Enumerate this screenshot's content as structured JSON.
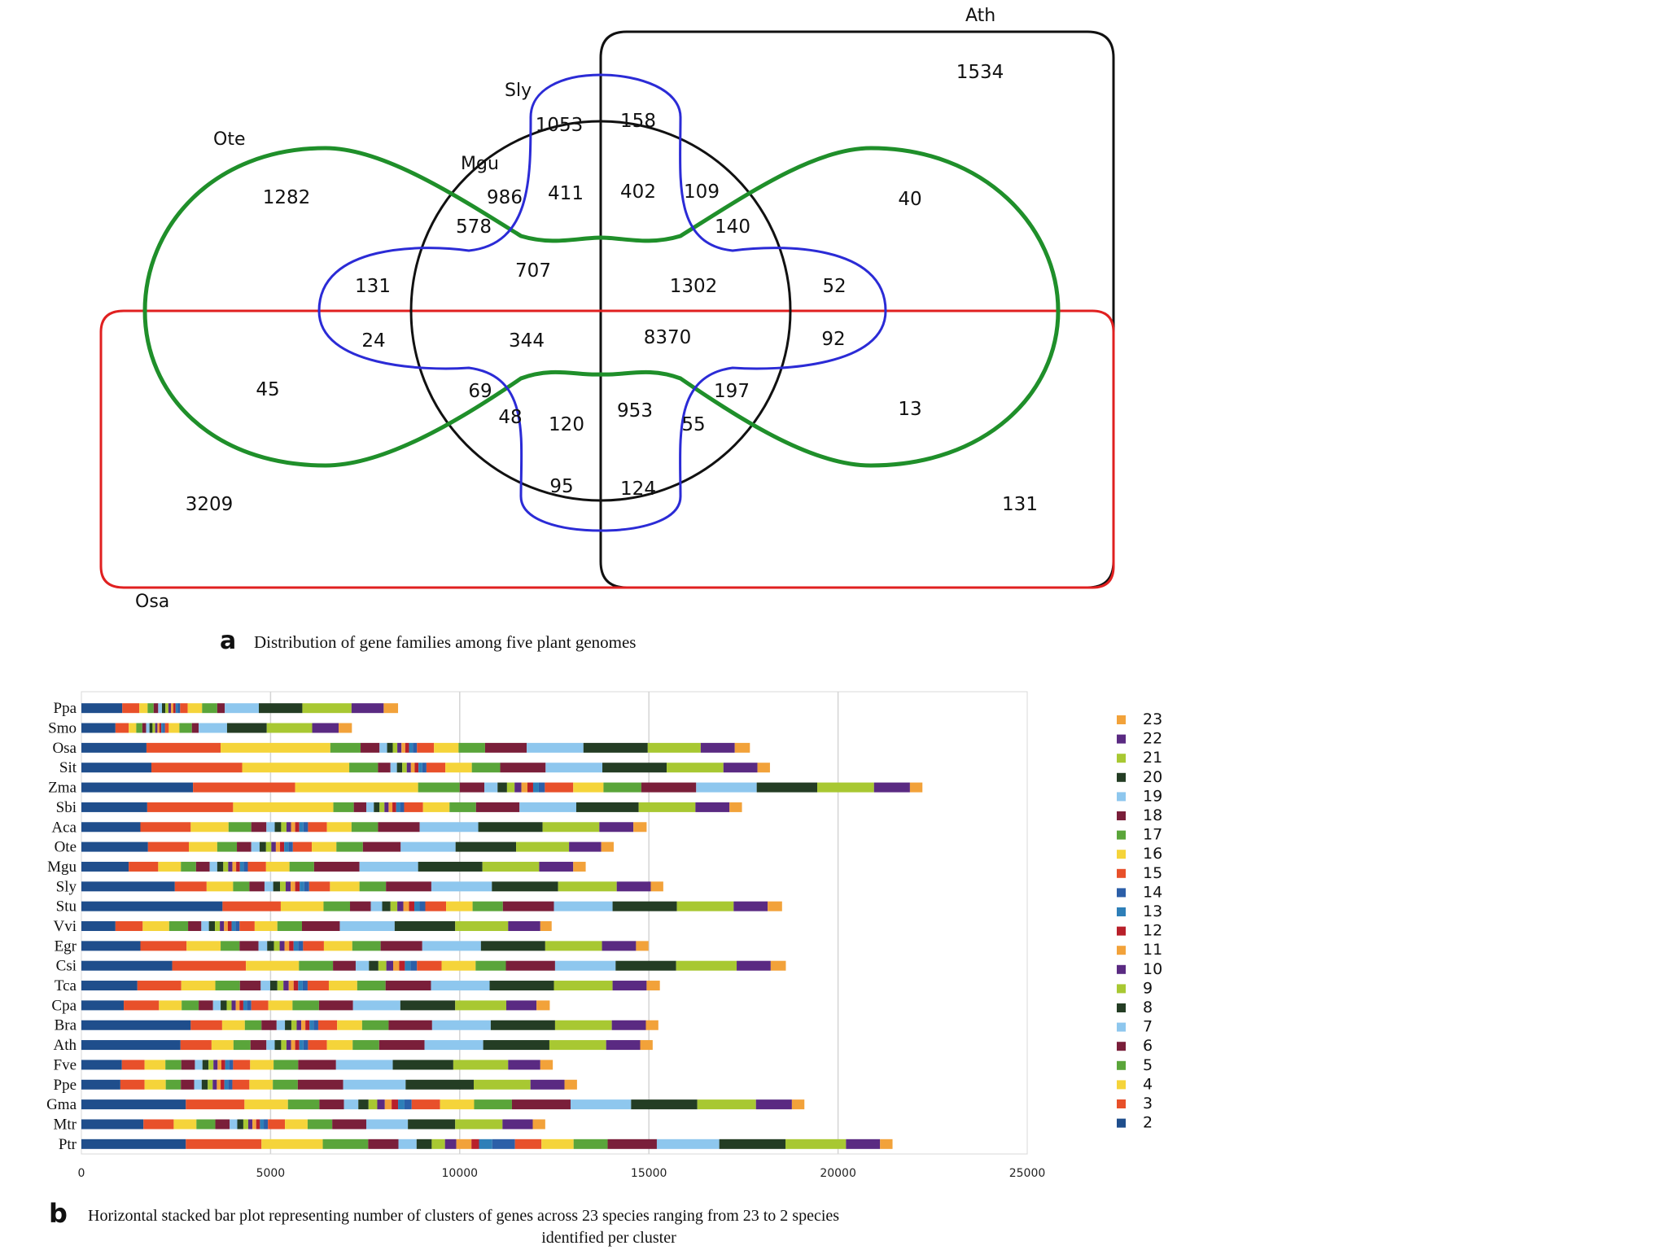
{
  "venn": {
    "panel_letter": "a",
    "caption": "Distribution of gene families among five plant genomes",
    "set_labels": {
      "ath": "Ath",
      "sly": "Sly",
      "ote": "Ote",
      "mgu": "Mgu",
      "osa": "Osa"
    },
    "colors": {
      "ath": "#111111",
      "sly": "#2b2bd6",
      "ote": "#1f8f2a",
      "mgu": "#111111",
      "osa": "#e02020"
    },
    "counts": {
      "ath_only": "1534",
      "sly_left": "1053",
      "sly_right": "158",
      "ote_left": "1282",
      "mgu_ote_sly": "986",
      "mgu_ote_top": "411",
      "mgu_ath_top": "402",
      "mgu_ath_sly": "109",
      "mgu_sly_left": "578",
      "ath_sly_ote_right": "140",
      "ote_right_top": "40",
      "mgu_left_upper": "707",
      "mgu_right_upper": "1302",
      "sly_ote_left_upper": "131",
      "sly_right_upper": "52",
      "sly_ote_left_lower": "24",
      "mgu_left_lower": "344",
      "core": "8370",
      "sly_right_lower": "92",
      "ote_osa_left": "45",
      "mgu_osa_sly_left": "69",
      "mgu_osa_sly_right": "197",
      "ote_right_lower": "13",
      "mgu_sly_ote_left_low": "48",
      "mgu_ote_bottom_left": "120",
      "mgu_ote_bottom_right": "953",
      "mgu_sly_ote_right_low": "55",
      "sly_bottom_left": "95",
      "sly_bottom_right": "124",
      "osa_only": "3209",
      "osa_ath": "131"
    }
  },
  "chart_data": {
    "type": "bar",
    "orientation": "horizontal",
    "stacked": true,
    "panel_letter": "b",
    "caption_line1": "Horizontal stacked bar plot representing number of clusters of genes across 23 species ranging from 23 to 2 species",
    "caption_line2": "identified per cluster",
    "categories": [
      "Ppa",
      "Smo",
      "Osa",
      "Sit",
      "Zma",
      "Sbi",
      "Aca",
      "Ote",
      "Mgu",
      "Sly",
      "Stu",
      "Vvi",
      "Egr",
      "Csi",
      "Tca",
      "Cpa",
      "Bra",
      "Ath",
      "Fve",
      "Ppe",
      "Gma",
      "Mtr",
      "Ptr"
    ],
    "xlim": [
      0,
      25000
    ],
    "xticks": [
      "0",
      "5000",
      "10000",
      "15000",
      "20000",
      "25000"
    ],
    "grid": true,
    "legend_position": "right",
    "series": [
      {
        "name": "2",
        "color": "#1f4e8c",
        "values": [
          1080,
          900,
          1720,
          1850,
          2950,
          1740,
          1560,
          1760,
          1250,
          2470,
          3730,
          900,
          1560,
          2400,
          1480,
          1120,
          2890,
          2620,
          1070,
          1030,
          2760,
          1640,
          2760
        ]
      },
      {
        "name": "3",
        "color": "#e8502a",
        "values": [
          450,
          350,
          1960,
          2400,
          2700,
          2270,
          1330,
          1080,
          780,
          840,
          1540,
          720,
          1220,
          1950,
          1160,
          930,
          830,
          820,
          600,
          640,
          1550,
          800,
          2000
        ]
      },
      {
        "name": "4",
        "color": "#f5d43a",
        "values": [
          220,
          200,
          2900,
          2830,
          3250,
          2650,
          1000,
          750,
          600,
          700,
          1130,
          700,
          900,
          1400,
          900,
          600,
          600,
          580,
          550,
          560,
          1150,
          600,
          1620
        ]
      },
      {
        "name": "5",
        "color": "#5aa53a",
        "values": [
          160,
          160,
          800,
          760,
          1100,
          540,
          600,
          520,
          400,
          430,
          700,
          500,
          500,
          900,
          650,
          450,
          440,
          450,
          420,
          400,
          830,
          500,
          1200
        ]
      },
      {
        "name": "6",
        "color": "#7a1f3a",
        "values": [
          120,
          100,
          500,
          330,
          650,
          330,
          400,
          380,
          360,
          400,
          550,
          350,
          500,
          600,
          550,
          380,
          400,
          420,
          360,
          350,
          650,
          380,
          800
        ]
      },
      {
        "name": "7",
        "color": "#8ec7ee",
        "values": [
          100,
          90,
          200,
          170,
          350,
          200,
          220,
          220,
          200,
          230,
          300,
          200,
          230,
          350,
          250,
          200,
          220,
          220,
          200,
          200,
          380,
          200,
          480
        ]
      },
      {
        "name": "8",
        "color": "#243d24",
        "values": [
          90,
          80,
          150,
          140,
          250,
          150,
          170,
          170,
          160,
          180,
          220,
          160,
          180,
          250,
          190,
          160,
          170,
          170,
          160,
          160,
          270,
          160,
          400
        ]
      },
      {
        "name": "9",
        "color": "#a8c832",
        "values": [
          80,
          70,
          120,
          120,
          200,
          130,
          140,
          140,
          130,
          150,
          180,
          130,
          150,
          210,
          160,
          130,
          140,
          140,
          130,
          130,
          230,
          130,
          350
        ]
      },
      {
        "name": "10",
        "color": "#5a2a82",
        "values": [
          70,
          60,
          110,
          110,
          180,
          110,
          120,
          120,
          110,
          130,
          160,
          110,
          130,
          180,
          140,
          110,
          120,
          120,
          110,
          110,
          200,
          110,
          300
        ]
      },
      {
        "name": "11",
        "color": "#f2a23a",
        "values": [
          60,
          50,
          100,
          100,
          160,
          100,
          110,
          110,
          100,
          120,
          150,
          100,
          120,
          160,
          130,
          100,
          110,
          110,
          100,
          100,
          180,
          100,
          400
        ]
      },
      {
        "name": "12",
        "color": "#b8202a",
        "values": [
          60,
          50,
          100,
          100,
          150,
          100,
          110,
          110,
          100,
          120,
          140,
          100,
          120,
          150,
          120,
          100,
          110,
          110,
          100,
          100,
          170,
          100,
          200
        ]
      },
      {
        "name": "13",
        "color": "#2e7fb8",
        "values": [
          60,
          50,
          100,
          100,
          150,
          100,
          110,
          110,
          100,
          120,
          140,
          100,
          120,
          150,
          120,
          100,
          110,
          110,
          100,
          100,
          170,
          100,
          350
        ]
      },
      {
        "name": "14",
        "color": "#2c5fa8",
        "values": [
          60,
          50,
          110,
          110,
          160,
          110,
          120,
          120,
          110,
          130,
          150,
          110,
          130,
          170,
          130,
          110,
          120,
          120,
          110,
          110,
          190,
          110,
          600
        ]
      },
      {
        "name": "15",
        "color": "#e8502a",
        "values": [
          200,
          100,
          450,
          500,
          750,
          500,
          500,
          500,
          480,
          550,
          550,
          400,
          550,
          650,
          560,
          450,
          500,
          500,
          450,
          450,
          750,
          450,
          700
        ]
      },
      {
        "name": "16",
        "color": "#f5d43a",
        "values": [
          380,
          280,
          650,
          700,
          800,
          700,
          650,
          650,
          620,
          780,
          700,
          600,
          750,
          900,
          750,
          640,
          660,
          680,
          620,
          620,
          900,
          600,
          850
        ]
      },
      {
        "name": "17",
        "color": "#5aa53a",
        "values": [
          400,
          330,
          700,
          750,
          1000,
          700,
          700,
          700,
          650,
          700,
          800,
          650,
          750,
          800,
          750,
          700,
          700,
          700,
          650,
          660,
          1000,
          650,
          900
        ]
      },
      {
        "name": "18",
        "color": "#7a1f3a",
        "values": [
          200,
          180,
          1100,
          1200,
          1450,
          1150,
          1100,
          1000,
          1200,
          1200,
          1350,
          1000,
          1100,
          1300,
          1200,
          900,
          1150,
          1200,
          1000,
          1200,
          1550,
          900,
          1300
        ]
      },
      {
        "name": "19",
        "color": "#8ec7ee",
        "values": [
          900,
          750,
          1500,
          1500,
          1600,
          1500,
          1550,
          1450,
          1550,
          1600,
          1550,
          1450,
          1550,
          1600,
          1550,
          1250,
          1550,
          1550,
          1500,
          1650,
          1600,
          1100,
          1650
        ]
      },
      {
        "name": "20",
        "color": "#243d24",
        "values": [
          1150,
          1050,
          1700,
          1700,
          1600,
          1650,
          1700,
          1600,
          1700,
          1750,
          1700,
          1600,
          1700,
          1600,
          1700,
          1450,
          1700,
          1750,
          1600,
          1800,
          1750,
          1250,
          1750
        ]
      },
      {
        "name": "21",
        "color": "#a8c832",
        "values": [
          1300,
          1200,
          1400,
          1500,
          1500,
          1500,
          1500,
          1400,
          1500,
          1550,
          1500,
          1400,
          1500,
          1600,
          1550,
          1350,
          1500,
          1500,
          1450,
          1500,
          1550,
          1250,
          1600
        ]
      },
      {
        "name": "22",
        "color": "#5a2a82",
        "values": [
          850,
          700,
          900,
          900,
          950,
          900,
          900,
          850,
          900,
          900,
          900,
          850,
          900,
          900,
          900,
          800,
          900,
          900,
          850,
          900,
          950,
          800,
          900
        ]
      },
      {
        "name": "23",
        "color": "#f2a23a",
        "values": [
          380,
          350,
          400,
          330,
          330,
          330,
          350,
          330,
          330,
          330,
          380,
          300,
          330,
          400,
          350,
          350,
          330,
          330,
          330,
          330,
          330,
          330,
          330
        ]
      }
    ]
  }
}
